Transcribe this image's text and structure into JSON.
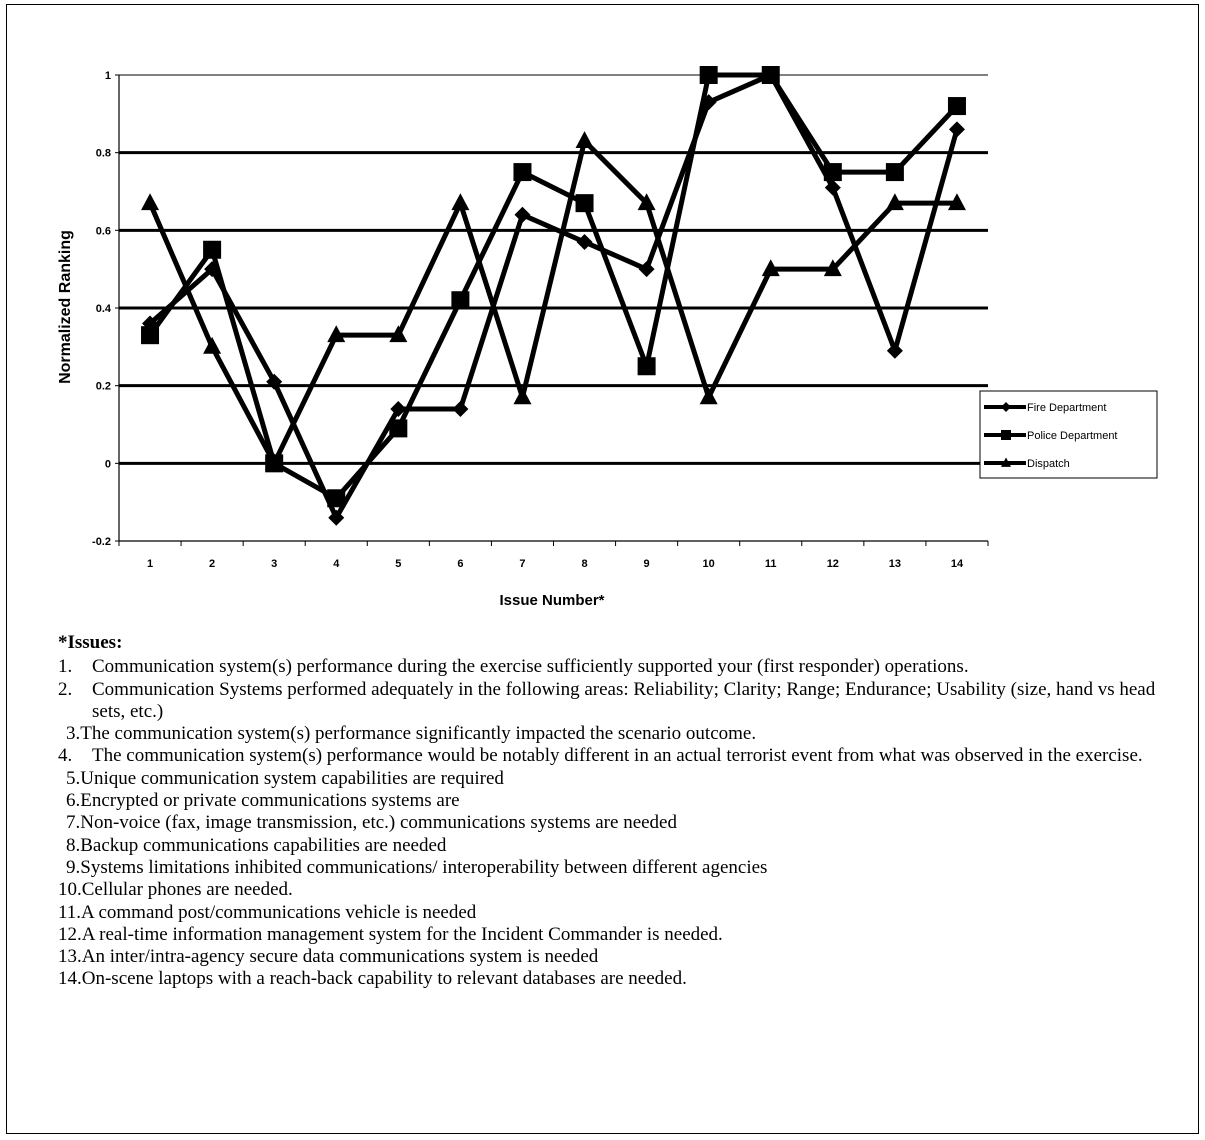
{
  "chart_data": {
    "type": "line",
    "title": "",
    "xlabel": "Issue Number*",
    "ylabel": "Normalized Ranking",
    "x": [
      1,
      2,
      3,
      4,
      5,
      6,
      7,
      8,
      9,
      10,
      11,
      12,
      13,
      14
    ],
    "ylim": [
      -0.2,
      1
    ],
    "yticks": [
      "-0.2",
      "0",
      "0.2",
      "0.4",
      "0.6",
      "0.8",
      "1"
    ],
    "ytick_values": [
      -0.2,
      0,
      0.2,
      0.4,
      0.6,
      0.8,
      1
    ],
    "grid": true,
    "legend_position": "right",
    "line_color": "#000000",
    "series": [
      {
        "name": "Fire Department",
        "marker": "diamond",
        "values": [
          0.36,
          0.5,
          0.21,
          -0.14,
          0.14,
          0.14,
          0.64,
          0.57,
          0.5,
          0.93,
          1.0,
          0.71,
          0.29,
          0.86
        ]
      },
      {
        "name": "Police Department",
        "marker": "square",
        "values": [
          0.33,
          0.55,
          0.0,
          -0.09,
          0.09,
          0.42,
          0.75,
          0.67,
          0.25,
          1.0,
          1.0,
          0.75,
          0.75,
          0.92
        ]
      },
      {
        "name": "Dispatch",
        "marker": "triangle",
        "values": [
          0.67,
          0.3,
          0.0,
          0.33,
          0.33,
          0.67,
          0.17,
          0.83,
          0.67,
          0.17,
          0.5,
          0.5,
          0.67,
          0.67
        ]
      }
    ]
  },
  "issues": {
    "heading": "*Issues:",
    "items": [
      {
        "num": "1.",
        "text": "Communication system(s) performance during the exercise sufficiently supported your (first responder) operations."
      },
      {
        "num": "2.",
        "text": "Communication Systems performed adequately in the following areas:  Reliability; Clarity; Range; Endurance; Usability (size, hand vs head sets, etc.)"
      },
      {
        "num": "3.",
        "text": "The communication system(s) performance significantly impacted the scenario outcome."
      },
      {
        "num": "4.",
        "text": "The communication system(s) performance would be notably different in an actual terrorist event from what was observed in the exercise."
      },
      {
        "num": "5.",
        "text": "Unique communication system capabilities are required"
      },
      {
        "num": "6.",
        "text": "Encrypted or private communications systems are"
      },
      {
        "num": "7.",
        "text": "Non-voice (fax, image transmission, etc.) communications systems are needed"
      },
      {
        "num": "8.",
        "text": "Backup communications capabilities are needed"
      },
      {
        "num": "9.",
        "text": "Systems limitations inhibited communications/ interoperability between different agencies"
      },
      {
        "num": "10.",
        "text": "Cellular phones are needed."
      },
      {
        "num": "11.",
        "text": "A command post/communications vehicle is needed"
      },
      {
        "num": "12.",
        "text": "A real-time information management system for the Incident Commander is needed."
      },
      {
        "num": "13.",
        "text": "An inter/intra-agency secure data communications system is needed"
      },
      {
        "num": "14.",
        "text": "On-scene laptops with a reach-back capability to relevant databases are needed."
      }
    ]
  }
}
